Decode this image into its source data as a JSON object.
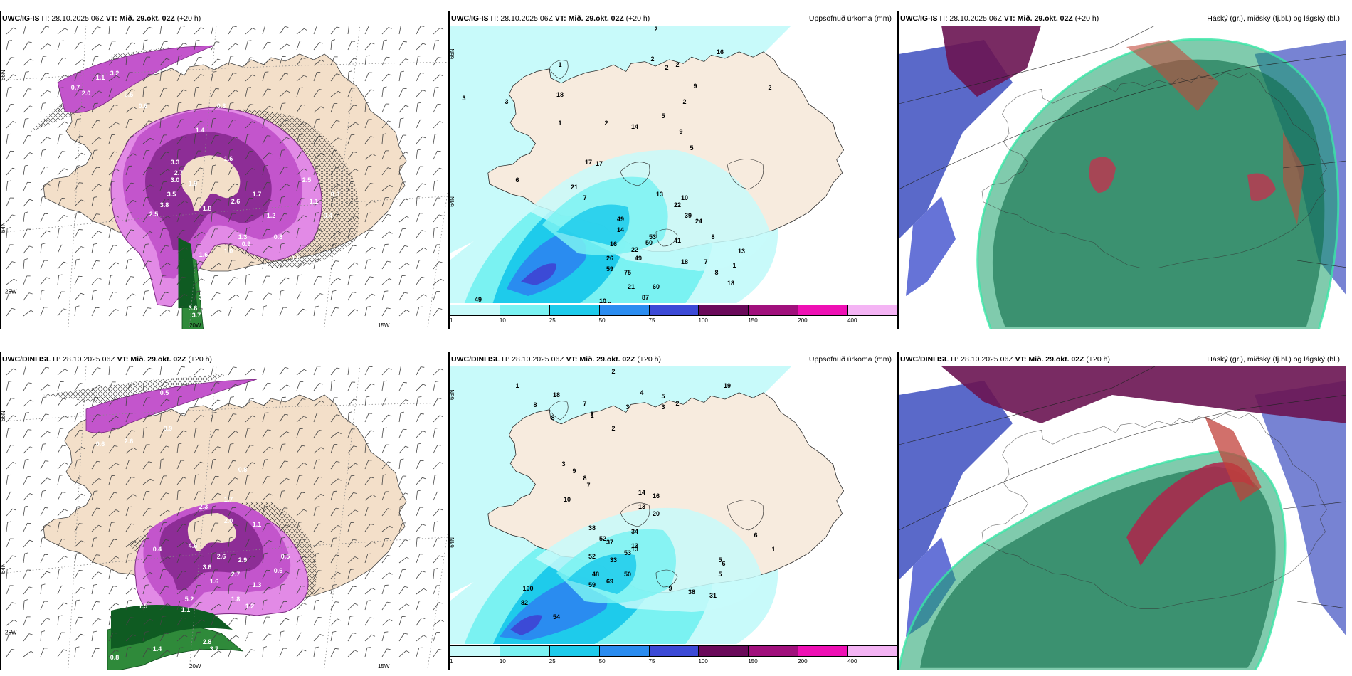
{
  "panels": [
    {
      "id": "tl",
      "model": "UWC/IG-IS",
      "it_label": "IT:",
      "it_value": "28.10.2025 06Z",
      "vt_label": "VT: Mið. 29.okt. 02Z",
      "lead": "(+20 h)",
      "right_title": "",
      "kind": "rate",
      "labels": [
        "3.2",
        "1.1",
        "0.7",
        "2.0",
        "0.5",
        "0.6",
        "0.3",
        "1.4",
        "1.6",
        "2.7",
        "3.3",
        "3.0",
        "3.5",
        "3.8",
        "2.5",
        "1.9",
        "1.8",
        "2.6",
        "1.7",
        "1.2",
        "1.3",
        "1.0",
        "0.9",
        "0.8",
        "1.5",
        "2.5",
        "1.1",
        "0.4",
        "0.3",
        "1.6",
        "3.6",
        "3.7",
        "3.4"
      ],
      "axis": [
        "66N",
        "64N",
        "25W",
        "20W",
        "15W"
      ]
    },
    {
      "id": "tm",
      "model": "UWC/IG-IS",
      "it_label": "IT:",
      "it_value": "28.10.2025 06Z",
      "vt_label": "VT: Mið. 29.okt. 02Z",
      "lead": "(+20 h)",
      "right_title": "Uppsöfnuð úrkoma (mm)",
      "kind": "accum",
      "labels": [
        "2",
        "16",
        "2",
        "2",
        "2",
        "1",
        "3",
        "18",
        "5",
        "9",
        "2",
        "1",
        "14",
        "9",
        "5",
        "17",
        "17",
        "6",
        "21",
        "13",
        "10",
        "7",
        "49",
        "39",
        "22",
        "24",
        "14",
        "53",
        "41",
        "16",
        "50",
        "49",
        "22",
        "59",
        "75",
        "26",
        "21",
        "87",
        "60",
        "18",
        "7",
        "8",
        "8",
        "18",
        "13",
        "1",
        "49",
        "10",
        "10",
        "2",
        "3",
        "2"
      ],
      "axis": [
        "66N",
        "64N"
      ]
    },
    {
      "id": "tr",
      "model": "UWC/IG-IS",
      "it_label": "IT:",
      "it_value": "28.10.2025 06Z",
      "vt_label": "VT: Mið. 29.okt. 02Z",
      "lead": "(+20 h)",
      "right_title": "Háský (gr.), miðský (fj.bl.) og lágský (bl.)",
      "kind": "cloud",
      "labels": [],
      "axis": []
    },
    {
      "id": "bl",
      "model": "UWC/DINI ISL",
      "it_label": "IT:",
      "it_value": "28.10.2025 06Z",
      "vt_label": "VT: Mið. 29.okt. 02Z",
      "lead": "(+20 h)",
      "right_title": "",
      "kind": "rate2",
      "labels": [
        "0.5",
        "0.9",
        "2.6",
        "0.6",
        "0.8",
        "1.7",
        "2.3",
        "2.0",
        "1.1",
        "0.4",
        "4.6",
        "3.6",
        "2.6",
        "2.9",
        "2.7",
        "1.6",
        "0.5",
        "0.6",
        "1.3",
        "5.2",
        "1.1",
        "1.5",
        "1.8",
        "1.2",
        "0.8",
        "1.4",
        "3.7",
        "2.8",
        "0.9"
      ],
      "axis": [
        "66N",
        "64N",
        "25W",
        "20W",
        "15W"
      ]
    },
    {
      "id": "bm",
      "model": "UWC/DINI ISL",
      "it_label": "IT:",
      "it_value": "28.10.2025 06Z",
      "vt_label": "VT: Mið. 29.okt. 02Z",
      "lead": "(+20 h)",
      "right_title": "Uppsöfnuð úrkoma (mm)",
      "kind": "accum2",
      "labels": [
        "2",
        "1",
        "18",
        "8",
        "7",
        "3",
        "4",
        "5",
        "3",
        "2",
        "8",
        "19",
        "2",
        "1",
        "2",
        "3",
        "9",
        "8",
        "7",
        "10",
        "14",
        "16",
        "13",
        "38",
        "34",
        "20",
        "13",
        "52",
        "37",
        "13",
        "33",
        "52",
        "48",
        "50",
        "69",
        "59",
        "53",
        "100",
        "82",
        "54",
        "9",
        "38",
        "31",
        "6",
        "5",
        "5",
        "6",
        "1"
      ],
      "axis": [
        "66N",
        "64N"
      ]
    },
    {
      "id": "br",
      "model": "UWC/DINI ISL",
      "it_label": "IT:",
      "it_value": "28.10.2025 06Z",
      "vt_label": "VT: Mið. 29.okt. 02Z",
      "lead": "(+20 h)",
      "right_title": "Háský (gr.), miðský (fj.bl.) og lágský (bl.)",
      "kind": "cloud2",
      "labels": [],
      "axis": []
    }
  ],
  "colorbar": {
    "ticks": [
      "1",
      "10",
      "25",
      "50",
      "75",
      "100",
      "150",
      "200",
      "400"
    ],
    "colors": [
      "#c8fafa",
      "#7af2f2",
      "#1ecbeb",
      "#2a8cf0",
      "#3c4ad6",
      "#6a0a5a",
      "#a0107c",
      "#ee10b4",
      "#f4b4f4"
    ]
  }
}
